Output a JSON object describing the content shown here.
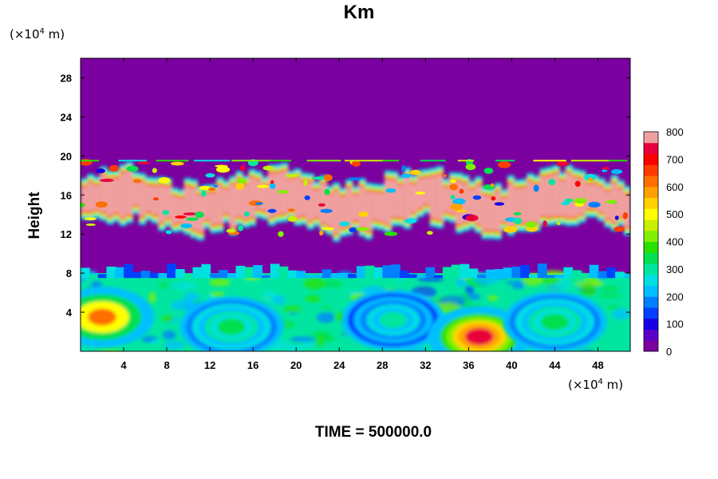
{
  "chart_data": {
    "type": "heatmap",
    "title": "Km",
    "ylabel": "Height",
    "xlabel": "",
    "y_unit": "(×10⁴ m)",
    "x_unit": "(×10⁴ m)",
    "unit_base": "×10",
    "unit_exp": "4",
    "unit_rest": " m)",
    "unit_open": "(",
    "xlim": [
      0,
      51
    ],
    "ylim": [
      0,
      30
    ],
    "x_ticks": [
      "4",
      "8",
      "12",
      "16",
      "20",
      "24",
      "28",
      "32",
      "36",
      "40",
      "44",
      "48"
    ],
    "y_ticks": [
      "4",
      "8",
      "12",
      "16",
      "20",
      "24",
      "28"
    ],
    "colorbar": {
      "min": 0,
      "max": 800,
      "ticks": [
        "0",
        "100",
        "200",
        "300",
        "400",
        "500",
        "600",
        "700",
        "800"
      ],
      "colors": [
        "#7b00a0",
        "#5a00c8",
        "#1600e6",
        "#0040ff",
        "#0080ff",
        "#00bfff",
        "#00e0e0",
        "#00e6a0",
        "#00e050",
        "#28e000",
        "#80f000",
        "#c8f000",
        "#ffff00",
        "#ffd200",
        "#ffa000",
        "#ff6e00",
        "#ff3c00",
        "#ff0000",
        "#e8003c",
        "#f0a0a0"
      ]
    },
    "features": {
      "background_value": 0,
      "lower_layer": {
        "height_range": [
          0,
          8
        ],
        "typical_value": 300
      },
      "upper_layer": {
        "height_range": [
          12,
          19.5
        ],
        "peak_value": 800
      },
      "eddies": [
        {
          "x": 2,
          "y": 3.5,
          "value": 650
        },
        {
          "x": 14,
          "y": 2.5,
          "value": 320
        },
        {
          "x": 29,
          "y": 3.2,
          "value": 260
        },
        {
          "x": 37,
          "y": 1.5,
          "value": 780
        },
        {
          "x": 44,
          "y": 3,
          "value": 330
        }
      ]
    }
  },
  "footer": {
    "time_label": "TIME = 500000.0"
  }
}
